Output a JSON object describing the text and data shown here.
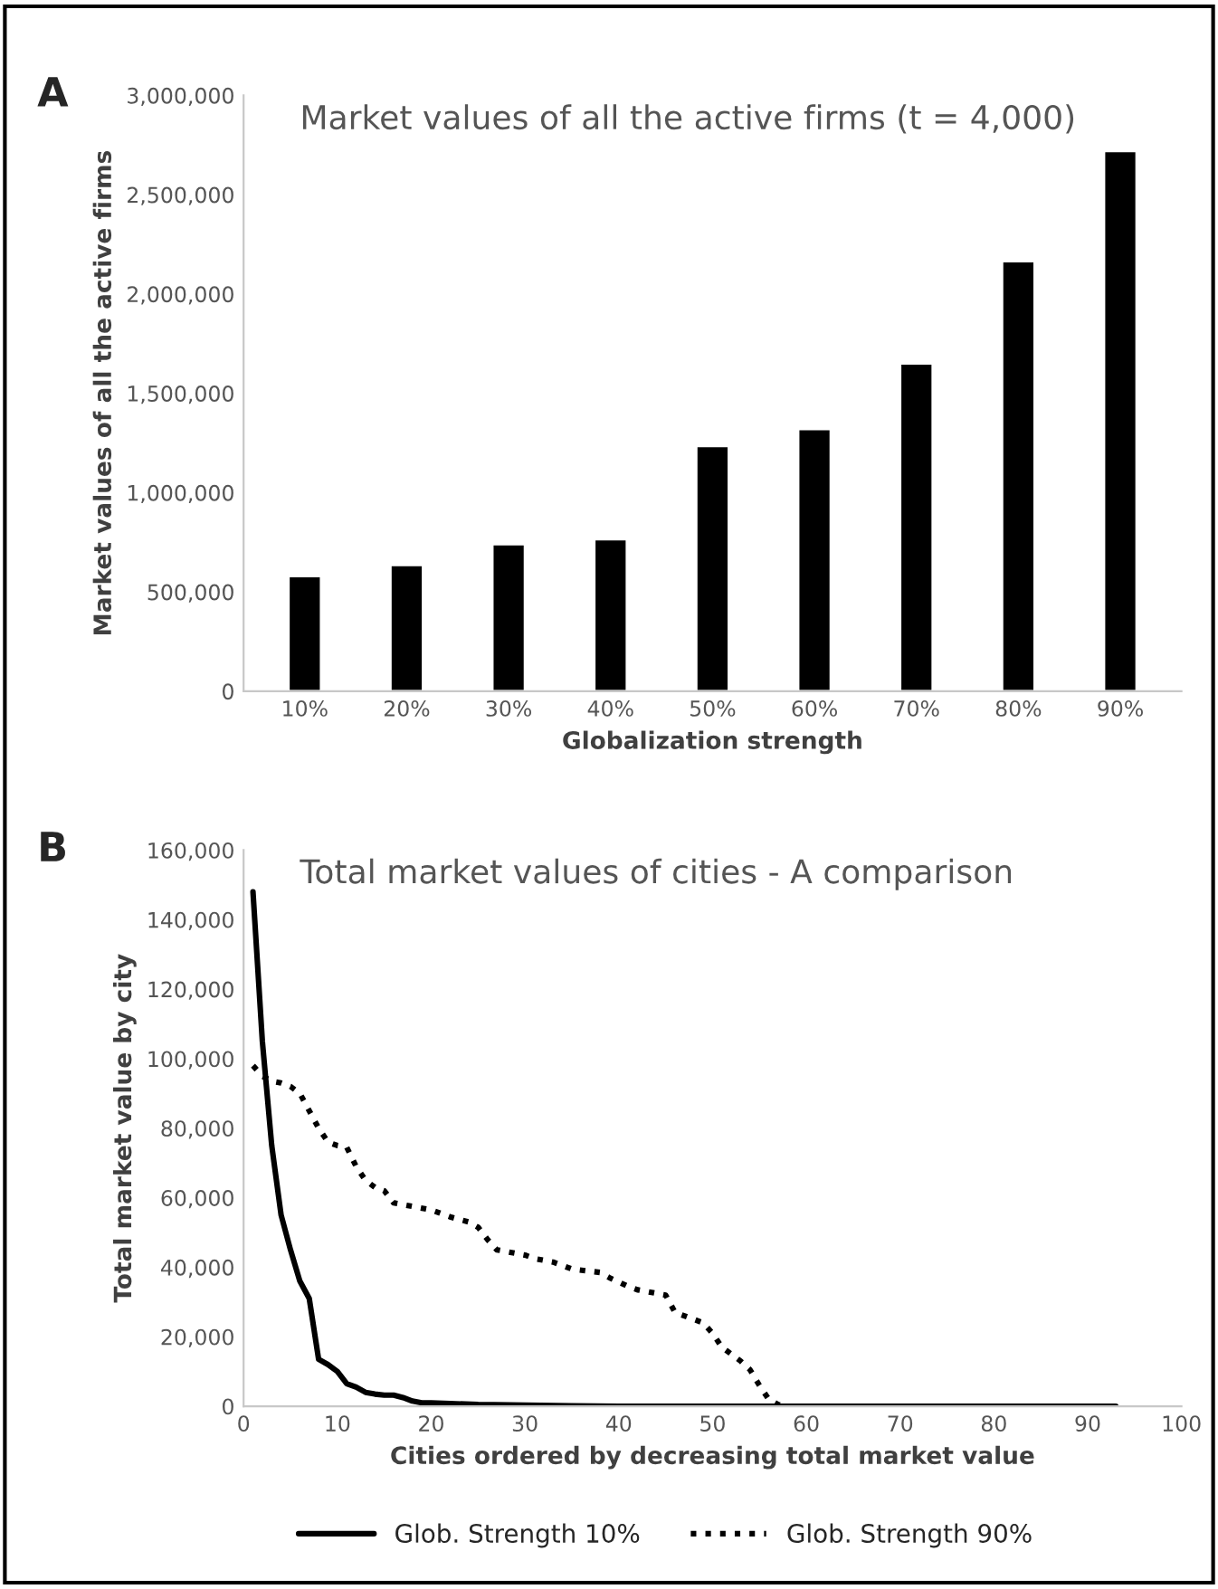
{
  "chart_data": [
    {
      "type": "bar",
      "title": "Market values of all the active firms (t = 4,000)",
      "xlabel": "Globalization strength",
      "ylabel": "Market values of all the active firms",
      "categories": [
        "10%",
        "20%",
        "30%",
        "40%",
        "50%",
        "60%",
        "70%",
        "80%",
        "90%"
      ],
      "values": [
        580000,
        635000,
        740000,
        765000,
        1235000,
        1320000,
        1650000,
        2165000,
        2720000
      ],
      "color": "#000000",
      "ylim": [
        0,
        3000000
      ],
      "yticks": [
        0,
        {
          "value": 500000,
          "label": "500,000"
        },
        {
          "value": 1000000,
          "label": "1,000,000"
        },
        {
          "value": 1500000,
          "label": "1,500,000"
        },
        {
          "value": 2000000,
          "label": "2,000,000"
        },
        {
          "value": 2500000,
          "label": "2,500,000"
        },
        {
          "value": 3000000,
          "label": "3,000,000"
        }
      ],
      "grid": false,
      "annotations": [
        "A"
      ]
    },
    {
      "type": "line",
      "title": "Total market values of cities - A comparison",
      "xlabel": "Cities ordered by decreasing total market value",
      "ylabel": "Total market value by city",
      "series": [
        {
          "name": "Glob. Strength 10%",
          "color": "#000000",
          "line_style": "solid",
          "x": [
            1,
            2,
            3,
            4,
            5,
            6,
            7,
            8,
            9,
            10,
            11,
            12,
            13,
            14,
            15,
            16,
            17,
            18,
            19,
            20,
            22,
            25,
            30,
            35,
            40,
            93
          ],
          "values": [
            148000,
            105000,
            75000,
            55000,
            45000,
            36000,
            31000,
            13500,
            12000,
            10000,
            6500,
            5500,
            4000,
            3500,
            3200,
            3200,
            2500,
            1500,
            1000,
            1000,
            800,
            500,
            300,
            100,
            0,
            0
          ]
        },
        {
          "name": "Glob. Strength 90%",
          "color": "#000000",
          "line_style": "dotted",
          "x": [
            1,
            2,
            3,
            4,
            5,
            6,
            7,
            8,
            9,
            10,
            11,
            12,
            13,
            14,
            15,
            16,
            17,
            18,
            20,
            22,
            24,
            25,
            26,
            27,
            28,
            30,
            31,
            33,
            35,
            38,
            39,
            41,
            42,
            45,
            46,
            49,
            50,
            51,
            53,
            54,
            55,
            56,
            57,
            58,
            63
          ],
          "values": [
            98000,
            95000,
            93500,
            93000,
            92000,
            90000,
            85000,
            80000,
            76000,
            75000,
            74500,
            69000,
            65000,
            63000,
            62000,
            58500,
            58000,
            57500,
            56500,
            54500,
            53000,
            51500,
            48000,
            45000,
            44500,
            43500,
            42500,
            41500,
            39500,
            38500,
            37000,
            34500,
            33500,
            32000,
            27000,
            24000,
            21000,
            17000,
            13000,
            10500,
            6000,
            2000,
            500,
            0,
            0
          ]
        }
      ],
      "xlim": [
        0,
        100
      ],
      "xticks": [
        0,
        10,
        20,
        30,
        40,
        50,
        60,
        70,
        80,
        90,
        100
      ],
      "ylim": [
        0,
        160000
      ],
      "yticks": [
        0,
        {
          "value": 20000,
          "label": "20,000"
        },
        {
          "value": 40000,
          "label": "40,000"
        },
        {
          "value": 60000,
          "label": "60,000"
        },
        {
          "value": 80000,
          "label": "80,000"
        },
        {
          "value": 100000,
          "label": "100,000"
        },
        {
          "value": 120000,
          "label": "120,000"
        },
        {
          "value": 140000,
          "label": "140,000"
        },
        {
          "value": 160000,
          "label": "160,000"
        }
      ],
      "grid": false,
      "legend": "bottom",
      "marker": "none",
      "annotations": [
        "B"
      ]
    }
  ]
}
